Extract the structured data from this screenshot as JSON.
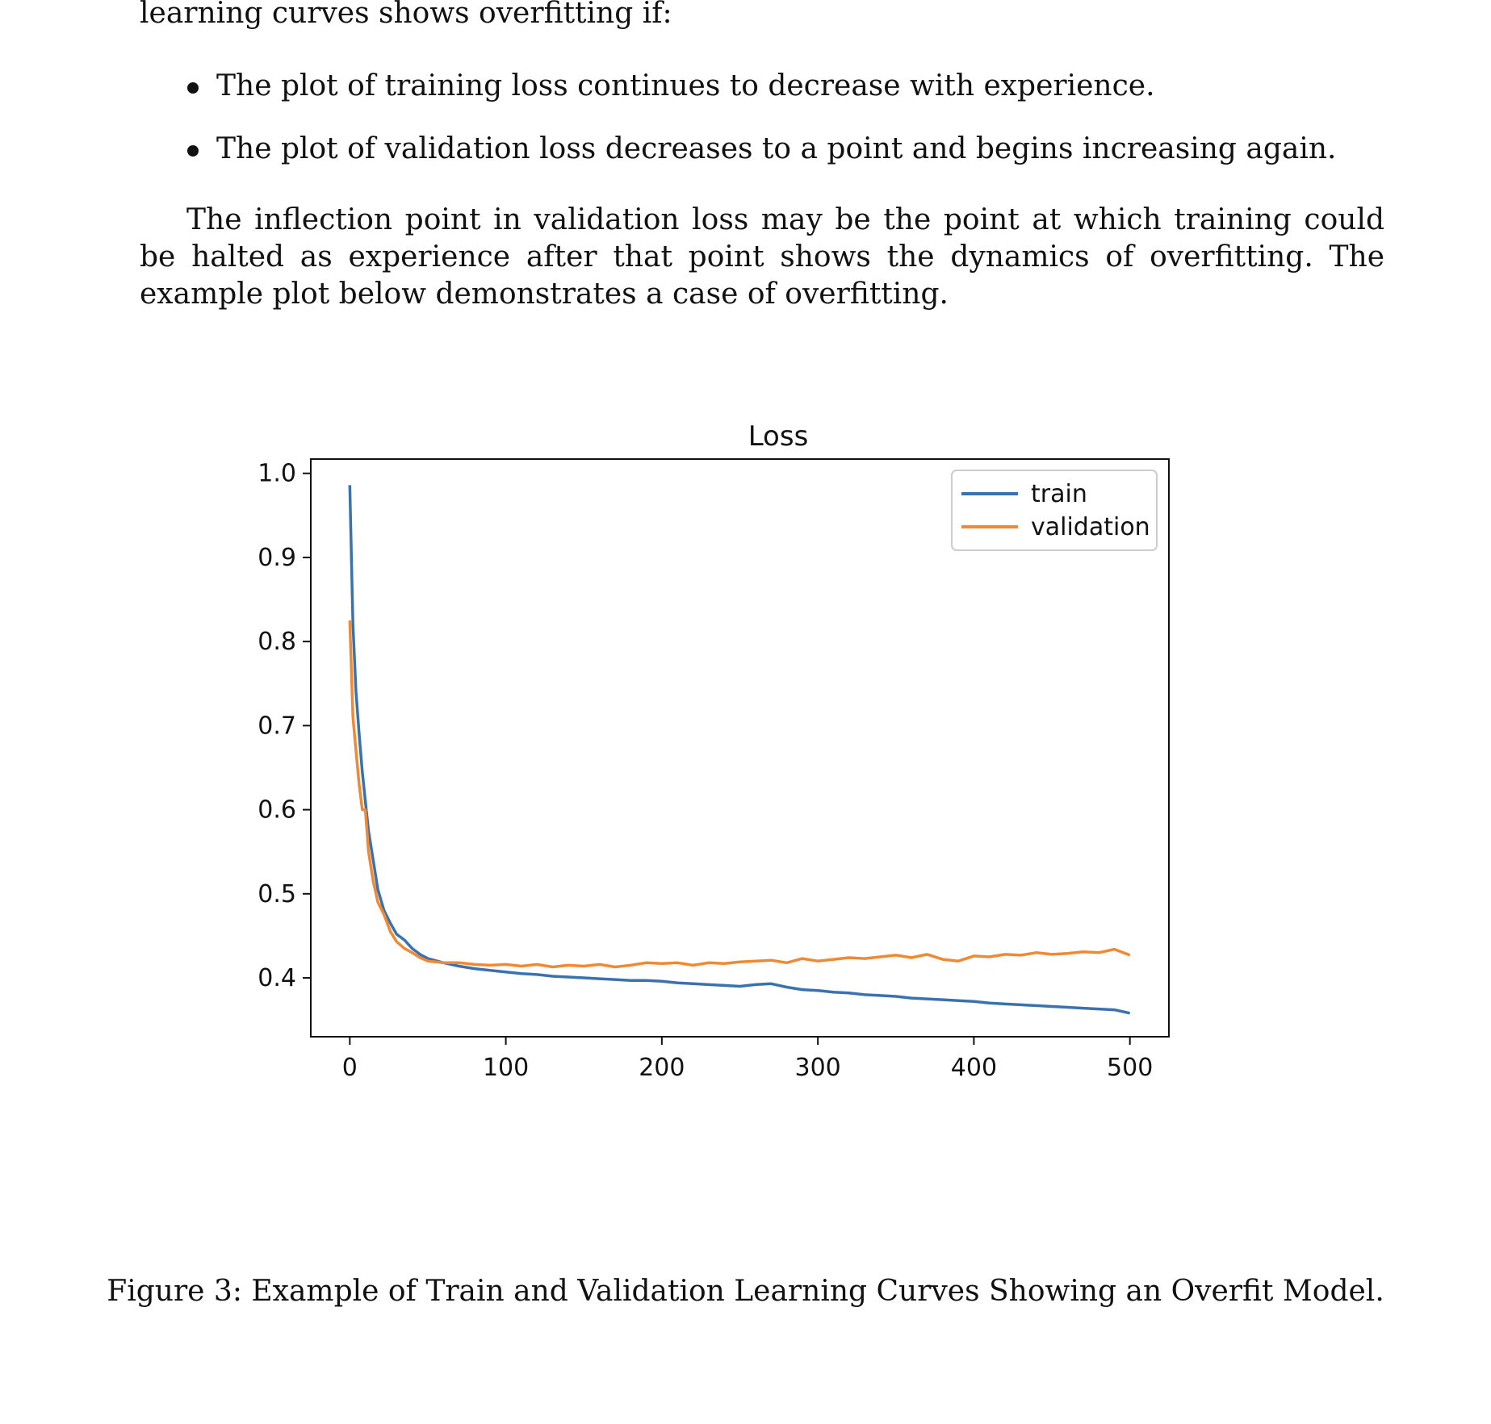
{
  "document": {
    "intro_line": "learning curves shows overfitting if:",
    "bullets": [
      "The plot of training loss continues to decrease with experience.",
      "The plot of validation loss decreases to a point and begins increasing again."
    ],
    "paragraph": "The inflection point in validation loss may be the point at which training could be halted as experience after that point shows the dynamics of overfitting. The example plot below demonstrates a case of overfitting.",
    "caption": "Figure 3: Example of Train and Validation Learning Curves Showing an Overfit Model."
  },
  "chart_data": {
    "type": "line",
    "title": "Loss",
    "xlabel": "",
    "ylabel": "",
    "xlim": [
      -25,
      525
    ],
    "ylim": [
      0.33,
      1.017
    ],
    "xticks": [
      0,
      100,
      200,
      300,
      400,
      500
    ],
    "yticks": [
      0.4,
      0.5,
      0.6,
      0.7,
      0.8,
      0.9,
      1.0
    ],
    "grid": false,
    "legend_position": "top-right",
    "series": [
      {
        "name": "train",
        "color": "#3a72b0",
        "x": [
          0,
          2,
          4,
          6,
          8,
          10,
          12,
          15,
          18,
          22,
          26,
          30,
          35,
          40,
          45,
          50,
          60,
          70,
          80,
          90,
          100,
          110,
          120,
          130,
          140,
          150,
          160,
          170,
          180,
          190,
          200,
          210,
          220,
          230,
          240,
          250,
          260,
          270,
          280,
          290,
          300,
          310,
          320,
          330,
          340,
          350,
          360,
          370,
          380,
          390,
          400,
          410,
          420,
          430,
          440,
          450,
          460,
          470,
          480,
          490,
          500
        ],
        "y": [
          0.986,
          0.82,
          0.74,
          0.69,
          0.645,
          0.61,
          0.575,
          0.54,
          0.505,
          0.48,
          0.465,
          0.452,
          0.445,
          0.435,
          0.428,
          0.423,
          0.418,
          0.414,
          0.411,
          0.409,
          0.407,
          0.405,
          0.404,
          0.402,
          0.401,
          0.4,
          0.399,
          0.398,
          0.397,
          0.397,
          0.396,
          0.394,
          0.393,
          0.392,
          0.391,
          0.39,
          0.392,
          0.393,
          0.389,
          0.386,
          0.385,
          0.383,
          0.382,
          0.38,
          0.379,
          0.378,
          0.376,
          0.375,
          0.374,
          0.373,
          0.372,
          0.37,
          0.369,
          0.368,
          0.367,
          0.366,
          0.365,
          0.364,
          0.363,
          0.362,
          0.358
        ]
      },
      {
        "name": "validation",
        "color": "#ef8a34",
        "x": [
          0,
          2,
          4,
          6,
          8,
          10,
          12,
          15,
          18,
          22,
          26,
          30,
          35,
          40,
          45,
          50,
          60,
          70,
          80,
          90,
          100,
          110,
          120,
          130,
          140,
          150,
          160,
          170,
          180,
          190,
          200,
          210,
          220,
          230,
          240,
          250,
          260,
          270,
          280,
          290,
          300,
          310,
          320,
          330,
          340,
          350,
          360,
          370,
          380,
          390,
          400,
          410,
          420,
          430,
          440,
          450,
          460,
          470,
          480,
          490,
          500
        ],
        "y": [
          0.825,
          0.71,
          0.67,
          0.63,
          0.6,
          0.6,
          0.55,
          0.515,
          0.49,
          0.475,
          0.455,
          0.443,
          0.435,
          0.43,
          0.424,
          0.42,
          0.418,
          0.418,
          0.416,
          0.415,
          0.416,
          0.414,
          0.416,
          0.413,
          0.415,
          0.414,
          0.416,
          0.413,
          0.415,
          0.418,
          0.417,
          0.418,
          0.415,
          0.418,
          0.417,
          0.419,
          0.42,
          0.421,
          0.418,
          0.423,
          0.42,
          0.422,
          0.424,
          0.423,
          0.425,
          0.427,
          0.424,
          0.428,
          0.422,
          0.42,
          0.426,
          0.425,
          0.428,
          0.427,
          0.43,
          0.428,
          0.429,
          0.431,
          0.43,
          0.434,
          0.427
        ]
      }
    ]
  }
}
